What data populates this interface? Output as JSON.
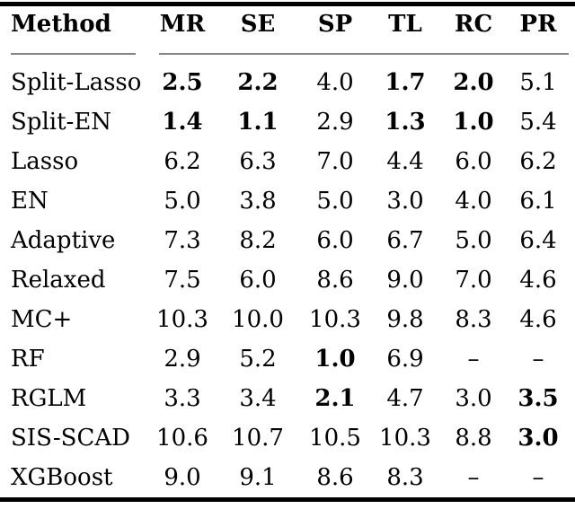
{
  "colors": {
    "text": "#000000",
    "rule": "#000000",
    "midrule": "#838383",
    "background": "#ffffff"
  },
  "table": {
    "columns": [
      {
        "key": "method",
        "label": "Method"
      },
      {
        "key": "mr",
        "label": "MR"
      },
      {
        "key": "se",
        "label": "SE"
      },
      {
        "key": "sp",
        "label": "SP"
      },
      {
        "key": "tl",
        "label": "TL"
      },
      {
        "key": "rc",
        "label": "RC"
      },
      {
        "key": "pr",
        "label": "PR"
      }
    ],
    "rows": [
      {
        "method": "Split-Lasso",
        "values": [
          {
            "text": "2.5",
            "bold": true
          },
          {
            "text": "2.2",
            "bold": true
          },
          {
            "text": "4.0",
            "bold": false
          },
          {
            "text": "1.7",
            "bold": true
          },
          {
            "text": "2.0",
            "bold": true
          },
          {
            "text": "5.1",
            "bold": false
          }
        ]
      },
      {
        "method": "Split-EN",
        "values": [
          {
            "text": "1.4",
            "bold": true
          },
          {
            "text": "1.1",
            "bold": true
          },
          {
            "text": "2.9",
            "bold": false
          },
          {
            "text": "1.3",
            "bold": true
          },
          {
            "text": "1.0",
            "bold": true
          },
          {
            "text": "5.4",
            "bold": false
          }
        ]
      },
      {
        "method": "Lasso",
        "values": [
          {
            "text": "6.2",
            "bold": false
          },
          {
            "text": "6.3",
            "bold": false
          },
          {
            "text": "7.0",
            "bold": false
          },
          {
            "text": "4.4",
            "bold": false
          },
          {
            "text": "6.0",
            "bold": false
          },
          {
            "text": "6.2",
            "bold": false
          }
        ]
      },
      {
        "method": "EN",
        "values": [
          {
            "text": "5.0",
            "bold": false
          },
          {
            "text": "3.8",
            "bold": false
          },
          {
            "text": "5.0",
            "bold": false
          },
          {
            "text": "3.0",
            "bold": false
          },
          {
            "text": "4.0",
            "bold": false
          },
          {
            "text": "6.1",
            "bold": false
          }
        ]
      },
      {
        "method": "Adaptive",
        "values": [
          {
            "text": "7.3",
            "bold": false
          },
          {
            "text": "8.2",
            "bold": false
          },
          {
            "text": "6.0",
            "bold": false
          },
          {
            "text": "6.7",
            "bold": false
          },
          {
            "text": "5.0",
            "bold": false
          },
          {
            "text": "6.4",
            "bold": false
          }
        ]
      },
      {
        "method": "Relaxed",
        "values": [
          {
            "text": "7.5",
            "bold": false
          },
          {
            "text": "6.0",
            "bold": false
          },
          {
            "text": "8.6",
            "bold": false
          },
          {
            "text": "9.0",
            "bold": false
          },
          {
            "text": "7.0",
            "bold": false
          },
          {
            "text": "4.6",
            "bold": false
          }
        ]
      },
      {
        "method": "MC+",
        "values": [
          {
            "text": "10.3",
            "bold": false
          },
          {
            "text": "10.0",
            "bold": false
          },
          {
            "text": "10.3",
            "bold": false
          },
          {
            "text": "9.8",
            "bold": false
          },
          {
            "text": "8.3",
            "bold": false
          },
          {
            "text": "4.6",
            "bold": false
          }
        ]
      },
      {
        "method": "RF",
        "values": [
          {
            "text": "2.9",
            "bold": false
          },
          {
            "text": "5.2",
            "bold": false
          },
          {
            "text": "1.0",
            "bold": true
          },
          {
            "text": "6.9",
            "bold": false
          },
          {
            "text": "–",
            "bold": false
          },
          {
            "text": "–",
            "bold": false
          }
        ]
      },
      {
        "method": "RGLM",
        "values": [
          {
            "text": "3.3",
            "bold": false
          },
          {
            "text": "3.4",
            "bold": false
          },
          {
            "text": "2.1",
            "bold": true
          },
          {
            "text": "4.7",
            "bold": false
          },
          {
            "text": "3.0",
            "bold": false
          },
          {
            "text": "3.5",
            "bold": true
          }
        ]
      },
      {
        "method": "SIS-SCAD",
        "values": [
          {
            "text": "10.6",
            "bold": false
          },
          {
            "text": "10.7",
            "bold": false
          },
          {
            "text": "10.5",
            "bold": false
          },
          {
            "text": "10.3",
            "bold": false
          },
          {
            "text": "8.8",
            "bold": false
          },
          {
            "text": "3.0",
            "bold": true
          }
        ]
      },
      {
        "method": "XGBoost",
        "values": [
          {
            "text": "9.0",
            "bold": false
          },
          {
            "text": "9.1",
            "bold": false
          },
          {
            "text": "8.6",
            "bold": false
          },
          {
            "text": "8.3",
            "bold": false
          },
          {
            "text": "–",
            "bold": false
          },
          {
            "text": "–",
            "bold": false
          }
        ]
      }
    ]
  }
}
